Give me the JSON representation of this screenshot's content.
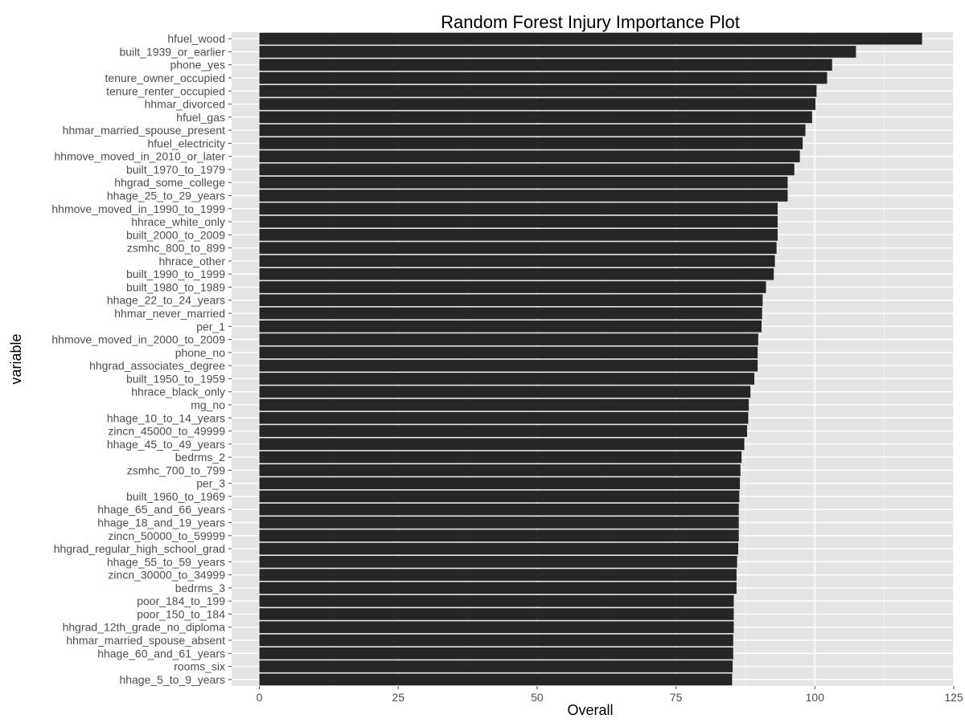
{
  "chart_data": {
    "type": "bar",
    "orientation": "horizontal",
    "title": "Random Forest Injury Importance Plot",
    "xlabel": "Overall",
    "ylabel": "variable",
    "xlim": [
      -5,
      125
    ],
    "x_ticks": [
      0,
      25,
      50,
      75,
      100,
      125
    ],
    "grid": true,
    "colors": {
      "bar": "#262626",
      "panel": "#e5e5e5",
      "grid_major": "#ffffff",
      "grid_minor": "#f2f2f2"
    },
    "categories": [
      "hfuel_wood",
      "built_1939_or_earlier",
      "phone_yes",
      "tenure_owner_occupied",
      "tenure_renter_occupied",
      "hhmar_divorced",
      "hfuel_gas",
      "hhmar_married_spouse_present",
      "hfuel_electricity",
      "hhmove_moved_in_2010_or_later",
      "built_1970_to_1979",
      "hhgrad_some_college",
      "hhage_25_to_29_years",
      "hhmove_moved_in_1990_to_1999",
      "hhrace_white_only",
      "built_2000_to_2009",
      "zsmhc_800_to_899",
      "hhrace_other",
      "built_1990_to_1999",
      "built_1980_to_1989",
      "hhage_22_to_24_years",
      "hhmar_never_married",
      "per_1",
      "hhmove_moved_in_2000_to_2009",
      "phone_no",
      "hhgrad_associates_degree",
      "built_1950_to_1959",
      "hhrace_black_only",
      "mg_no",
      "hhage_10_to_14_years",
      "zincn_45000_to_49999",
      "hhage_45_to_49_years",
      "bedrms_2",
      "zsmhc_700_to_799",
      "per_3",
      "built_1960_to_1969",
      "hhage_65_and_66_years",
      "hhage_18_and_19_years",
      "zincn_50000_to_59999",
      "hhgrad_regular_high_school_grad",
      "hhage_55_to_59_years",
      "zincn_30000_to_34999",
      "bedrms_3",
      "poor_184_to_199",
      "poor_150_to_184",
      "hhgrad_12th_grade_no_diploma",
      "hhmar_married_spouse_absent",
      "hhage_60_and_61_years",
      "rooms_six",
      "hhage_5_to_9_years"
    ],
    "values": [
      119.3,
      107.4,
      103.1,
      102.2,
      100.3,
      100.1,
      99.5,
      98.3,
      97.8,
      97.3,
      96.3,
      95.1,
      95.1,
      93.3,
      93.3,
      93.3,
      93.1,
      92.8,
      92.6,
      91.2,
      90.6,
      90.5,
      90.4,
      89.8,
      89.7,
      89.7,
      89.1,
      88.4,
      88.1,
      88.0,
      87.8,
      87.3,
      86.8,
      86.6,
      86.5,
      86.4,
      86.3,
      86.3,
      86.3,
      86.2,
      86.0,
      85.9,
      85.9,
      85.4,
      85.4,
      85.4,
      85.3,
      85.3,
      85.2,
      85.1
    ]
  }
}
